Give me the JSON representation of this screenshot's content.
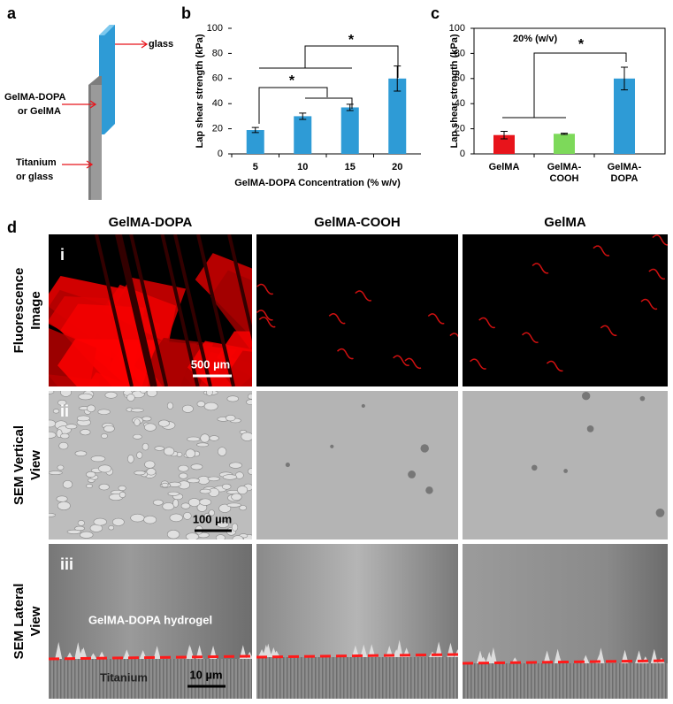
{
  "panel_labels": [
    "a",
    "b",
    "c",
    "d"
  ],
  "schematic": {
    "glass": "glass",
    "adhesive": [
      "GelMA-DOPA",
      "or GelMA"
    ],
    "substrate": [
      "Titanium",
      "or glass"
    ]
  },
  "chart_data": [
    {
      "type": "bar",
      "ylabel": "Lap shear strength (kPa)",
      "xlabel": "GelMA-DOPA Concentration  (% w/v)",
      "categories": [
        "5",
        "10",
        "15",
        "20"
      ],
      "values": [
        19,
        30,
        37,
        60
      ],
      "errors": [
        2,
        2.5,
        2.5,
        10
      ],
      "color": "#2e9bd6",
      "ylim": [
        0,
        100
      ],
      "yticks": [
        0,
        20,
        40,
        60,
        80,
        100
      ],
      "frame": false,
      "annotations": [
        "*",
        "*"
      ]
    },
    {
      "type": "bar",
      "ylabel": "Lap shear strength (kPa)",
      "categories": [
        "GelMA",
        "GelMA-COOH",
        "GelMA-DOPA"
      ],
      "values": [
        15,
        16,
        60
      ],
      "errors": [
        3,
        0.5,
        9
      ],
      "colors": [
        "#e8141b",
        "#7dd95a",
        "#2e9bd6"
      ],
      "ylim": [
        0,
        100
      ],
      "yticks": [
        0,
        20,
        40,
        60,
        80,
        100
      ],
      "frame": true,
      "annotations": [
        "20% (w/v)",
        "*"
      ]
    }
  ],
  "image_grid": {
    "columns": [
      "GelMA-DOPA",
      "GelMA-COOH",
      "GelMA"
    ],
    "rows": [
      [
        "Fluorescence",
        "Image"
      ],
      [
        "SEM Vertical",
        "View"
      ],
      [
        "SEM Lateral",
        "View"
      ]
    ],
    "row_numerals": [
      "i",
      "ii",
      "iii"
    ],
    "scale_bars": [
      "500 µm",
      "100 µm",
      "10 µm"
    ],
    "annotations": [
      "GelMA-DOPA hydrogel",
      "Titanium"
    ]
  }
}
